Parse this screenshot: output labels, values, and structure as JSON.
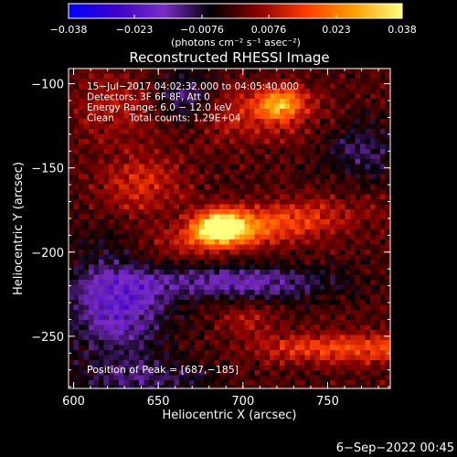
{
  "colorbar": {
    "tick_labels": [
      "−0.038",
      "−0.023",
      "−0.0076",
      "0.0076",
      "0.023",
      "0.038"
    ],
    "unit_label": "(photons cm⁻² s⁻¹ asec⁻²)",
    "colors": [
      "#0000ff",
      "#3b00c8",
      "#7a2cc4",
      "#000000",
      "#8c0000",
      "#ff3d00",
      "#ffa000",
      "#ffff80"
    ]
  },
  "chart_data": {
    "type": "heatmap",
    "title": "Reconstructed RHESSI Image",
    "xlabel": "Heliocentric X (arcsec)",
    "ylabel": "Heliocentric Y (arcsec)",
    "xlim": [
      597,
      787
    ],
    "ylim": [
      -281,
      -91
    ],
    "xticks": [
      600,
      650,
      700,
      750
    ],
    "xtick_labels": [
      "600",
      "650",
      "700",
      "750"
    ],
    "yticks": [
      -100,
      -150,
      -200,
      -250
    ],
    "ytick_labels": [
      "−100",
      "−150",
      "−200",
      "−250"
    ],
    "colorbar_range": [
      -0.038,
      0.038
    ],
    "annotations": [
      "15−Jul−2017 04:02:32.000 to 04:05:40.000",
      "Detectors: 3F 6F 8F, Att 0",
      "Energy Range: 6.0 − 12.0 keV",
      "Clean     Total counts: 1.29E+04"
    ],
    "peak_label": "Position of Peak = [687,−185]",
    "peak": [
      687,
      -185
    ],
    "sources": [
      {
        "x": 687,
        "y": -185,
        "peak": 0.038
      },
      {
        "x": 722,
        "y": -112,
        "peak": 0.022
      },
      {
        "x": 740,
        "y": -175,
        "peak": 0.02
      },
      {
        "x": 760,
        "y": -257,
        "peak": 0.016
      }
    ],
    "grid": false
  },
  "footer": {
    "date_stamp": "6−Sep−2022 00:45"
  }
}
